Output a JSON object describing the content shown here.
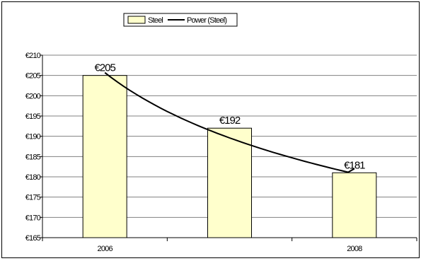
{
  "chart_data": {
    "type": "bar",
    "categories": [
      "2006",
      "",
      "2008"
    ],
    "category_axis_labels": [
      "2006",
      "",
      "2008"
    ],
    "values": [
      205,
      192,
      181
    ],
    "data_labels": [
      "€205",
      "€192",
      "€181"
    ],
    "trendline": {
      "name": "Power (Steel)",
      "type": "power",
      "values": [
        205.7,
        189.6,
        182.0
      ]
    },
    "legend": {
      "position": "top-center",
      "entries": [
        {
          "label": "Steel",
          "kind": "bar"
        },
        {
          "label": "Power (Steel)",
          "kind": "line"
        }
      ]
    },
    "y_axis": {
      "min": 165,
      "max": 210,
      "step": 5,
      "tick_labels": [
        "€165",
        "€170",
        "€175",
        "€180",
        "€185",
        "€190",
        "€195",
        "€200",
        "€205",
        "€210"
      ]
    },
    "title": "",
    "xlabel": "",
    "ylabel": "",
    "grid": true,
    "colors": {
      "bar_fill": "#FFFFCC",
      "bar_stroke": "#000000",
      "trend_line": "#000000",
      "gridline": "#808080"
    }
  }
}
